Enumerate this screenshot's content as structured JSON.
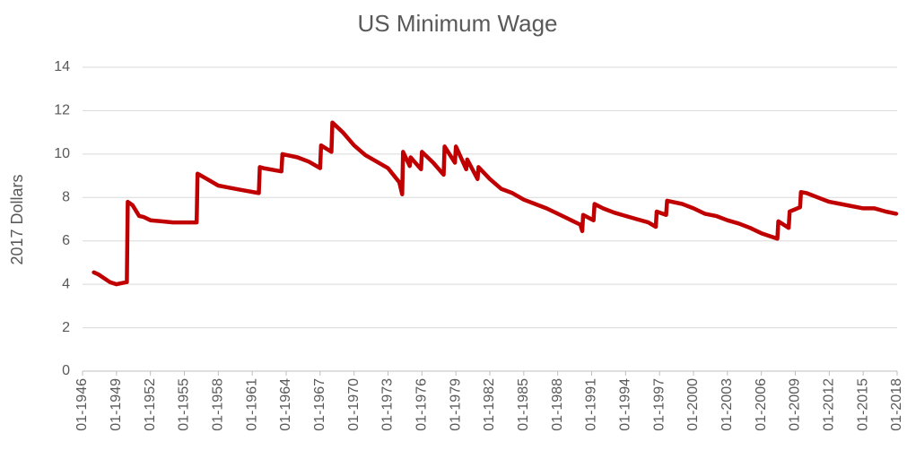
{
  "chart_data": {
    "type": "line",
    "title": "US Minimum Wage",
    "y_label": "2017 Dollars",
    "color": "#c00000",
    "grid": true,
    "x": [
      "01-1947",
      "06-1947",
      "01-1948",
      "06-1948",
      "01-1949",
      "06-1949",
      "12-1949",
      "01-1950",
      "06-1950",
      "01-1951",
      "06-1951",
      "01-1952",
      "01-1953",
      "01-1954",
      "01-1955",
      "02-1956",
      "03-1956",
      "01-1957",
      "01-1958",
      "01-1959",
      "01-1960",
      "08-1961",
      "09-1961",
      "01-1962",
      "08-1963",
      "09-1963",
      "01-1965",
      "01-1966",
      "01-1967",
      "02-1967",
      "01-1968",
      "02-1968",
      "01-1969",
      "01-1970",
      "01-1971",
      "01-1972",
      "01-1973",
      "01-1974",
      "04-1974",
      "05-1974",
      "12-1974",
      "01-1975",
      "12-1975",
      "01-1976",
      "01-1977",
      "12-1977",
      "01-1978",
      "12-1978",
      "01-1979",
      "12-1979",
      "01-1980",
      "12-1980",
      "01-1981",
      "01-1982",
      "01-1983",
      "01-1984",
      "01-1985",
      "01-1986",
      "01-1987",
      "01-1988",
      "01-1989",
      "01-1990",
      "03-1990",
      "04-1990",
      "03-1991",
      "04-1991",
      "01-1992",
      "01-1993",
      "01-1994",
      "01-1995",
      "01-1996",
      "09-1996",
      "10-1996",
      "08-1997",
      "09-1997",
      "01-1999",
      "01-2000",
      "01-2001",
      "01-2002",
      "01-2003",
      "01-2004",
      "01-2005",
      "01-2006",
      "06-2007",
      "07-2007",
      "06-2008",
      "07-2008",
      "06-2009",
      "07-2009",
      "01-2010",
      "01-2011",
      "01-2012",
      "01-2013",
      "01-2014",
      "01-2015",
      "01-2016",
      "01-2017",
      "12-2017"
    ],
    "values": [
      4.55,
      4.45,
      4.25,
      4.1,
      4.0,
      4.05,
      4.1,
      7.8,
      7.65,
      7.15,
      7.1,
      6.95,
      6.9,
      6.85,
      6.85,
      6.85,
      9.1,
      8.85,
      8.55,
      8.45,
      8.35,
      8.2,
      9.4,
      9.35,
      9.2,
      10.0,
      9.85,
      9.65,
      9.35,
      10.4,
      10.1,
      11.45,
      11.0,
      10.4,
      9.95,
      9.65,
      9.35,
      8.7,
      8.15,
      10.1,
      9.45,
      9.85,
      9.3,
      10.1,
      9.6,
      9.05,
      10.35,
      9.6,
      10.35,
      9.3,
      9.75,
      8.85,
      9.4,
      8.85,
      8.4,
      8.2,
      7.9,
      7.7,
      7.5,
      7.25,
      7.0,
      6.75,
      6.45,
      7.2,
      6.95,
      7.7,
      7.5,
      7.3,
      7.15,
      7.0,
      6.85,
      6.65,
      7.35,
      7.2,
      7.85,
      7.7,
      7.5,
      7.25,
      7.15,
      6.95,
      6.8,
      6.6,
      6.35,
      6.1,
      6.9,
      6.6,
      7.35,
      7.55,
      8.25,
      8.2,
      8.0,
      7.8,
      7.7,
      7.6,
      7.5,
      7.5,
      7.35,
      7.25
    ],
    "xlim": [
      "01-1946",
      "01-2018"
    ],
    "xticks": [
      "01-1946",
      "01-1949",
      "01-1952",
      "01-1955",
      "01-1958",
      "01-1961",
      "01-1964",
      "01-1967",
      "01-1970",
      "01-1973",
      "01-1976",
      "01-1979",
      "01-1982",
      "01-1985",
      "01-1988",
      "01-1991",
      "01-1994",
      "01-1997",
      "01-2000",
      "01-2003",
      "01-2006",
      "01-2009",
      "01-2012",
      "01-2015",
      "01-2018"
    ],
    "ylim": [
      0,
      14
    ],
    "yticks": [
      0,
      2,
      4,
      6,
      8,
      10,
      12,
      14
    ]
  }
}
